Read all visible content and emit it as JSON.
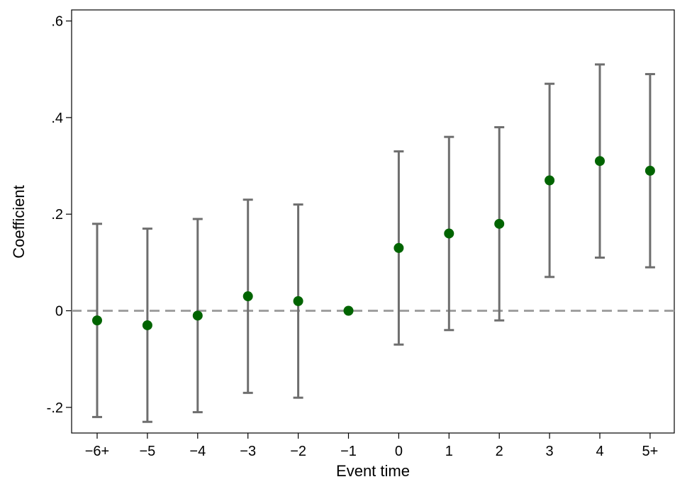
{
  "chart_data": {
    "type": "scatter",
    "title": "",
    "xlabel": "Event time",
    "ylabel": "Coefficient",
    "x": [
      "−6+",
      "−5",
      "−4",
      "−3",
      "−2",
      "−1",
      "0",
      "1",
      "2",
      "3",
      "4",
      "5+"
    ],
    "series": [
      {
        "coefficient": [
          -0.02,
          -0.03,
          -0.01,
          0.03,
          0.02,
          0.0,
          0.13,
          0.16,
          0.18,
          0.27,
          0.31,
          0.29
        ],
        "ci_lower": [
          -0.22,
          -0.23,
          -0.21,
          -0.17,
          -0.18,
          null,
          -0.07,
          -0.04,
          -0.02,
          0.07,
          0.11,
          0.09
        ],
        "ci_upper": [
          0.18,
          0.17,
          0.19,
          0.23,
          0.22,
          null,
          0.33,
          0.36,
          0.38,
          0.47,
          0.51,
          0.49
        ]
      }
    ],
    "y_ticks": [
      {
        "value": -0.2,
        "label": "-.2"
      },
      {
        "value": 0,
        "label": "0"
      },
      {
        "value": 0.2,
        "label": ".2"
      },
      {
        "value": 0.4,
        "label": ".4"
      },
      {
        "value": 0.6,
        "label": ".6"
      }
    ],
    "ylim": [
      -0.25,
      0.625
    ],
    "reference_line": {
      "y": 0,
      "style": "dashed"
    },
    "grid": false,
    "colors": {
      "point": "#006400",
      "ci": "#6e6e6e",
      "reference_line": "#a0a0a0",
      "axis": "#000000"
    }
  }
}
